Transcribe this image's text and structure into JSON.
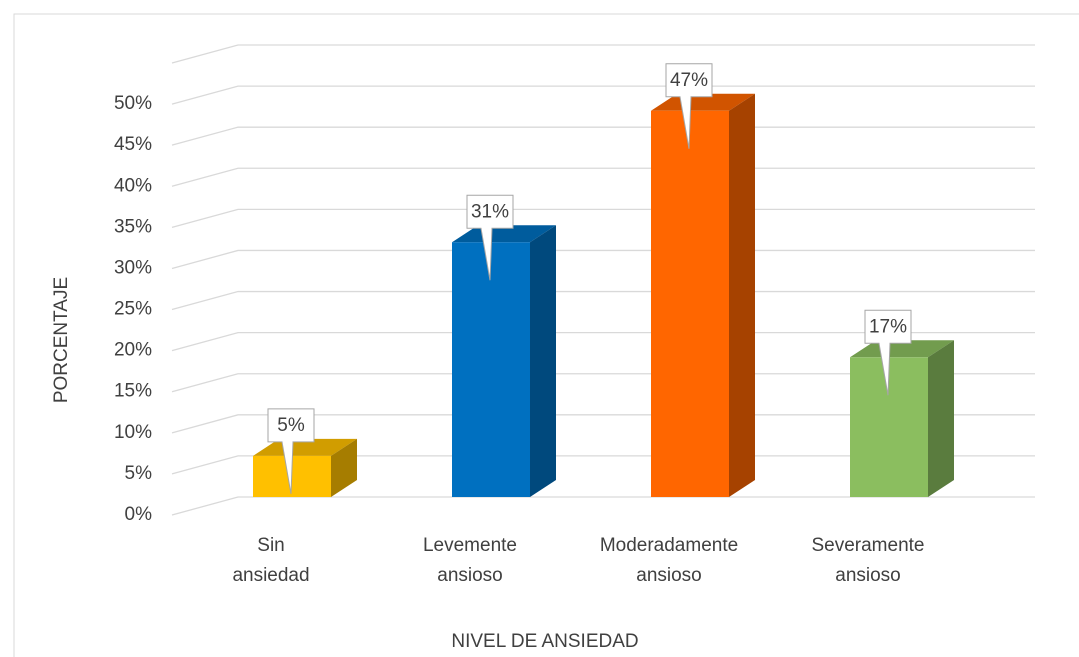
{
  "chart_data": {
    "type": "bar3d",
    "xlabel": "NIVEL DE ANSIEDAD",
    "ylabel": "PORCENTAJE",
    "categories": [
      "Sin ansiedad",
      "Levemente ansioso",
      "Moderadamente ansioso",
      "Severamente ansioso"
    ],
    "values": [
      5,
      31,
      47,
      17
    ],
    "value_labels": [
      "5%",
      "31%",
      "47%",
      "17%"
    ],
    "colors": [
      "#FFC000",
      "#0070C0",
      "#FF6600",
      "#8BBE5F"
    ],
    "ylim": [
      0,
      55
    ],
    "yticks": [
      {
        "value": 0,
        "label": "0%"
      },
      {
        "value": 5,
        "label": "5%"
      },
      {
        "value": 10,
        "label": "10%"
      },
      {
        "value": 15,
        "label": "15%"
      },
      {
        "value": 20,
        "label": "20%"
      },
      {
        "value": 25,
        "label": "25%"
      },
      {
        "value": 30,
        "label": "30%"
      },
      {
        "value": 35,
        "label": "35%"
      },
      {
        "value": 40,
        "label": "40%"
      },
      {
        "value": 45,
        "label": "45%"
      },
      {
        "value": 50,
        "label": "50%"
      }
    ],
    "grid": true
  }
}
